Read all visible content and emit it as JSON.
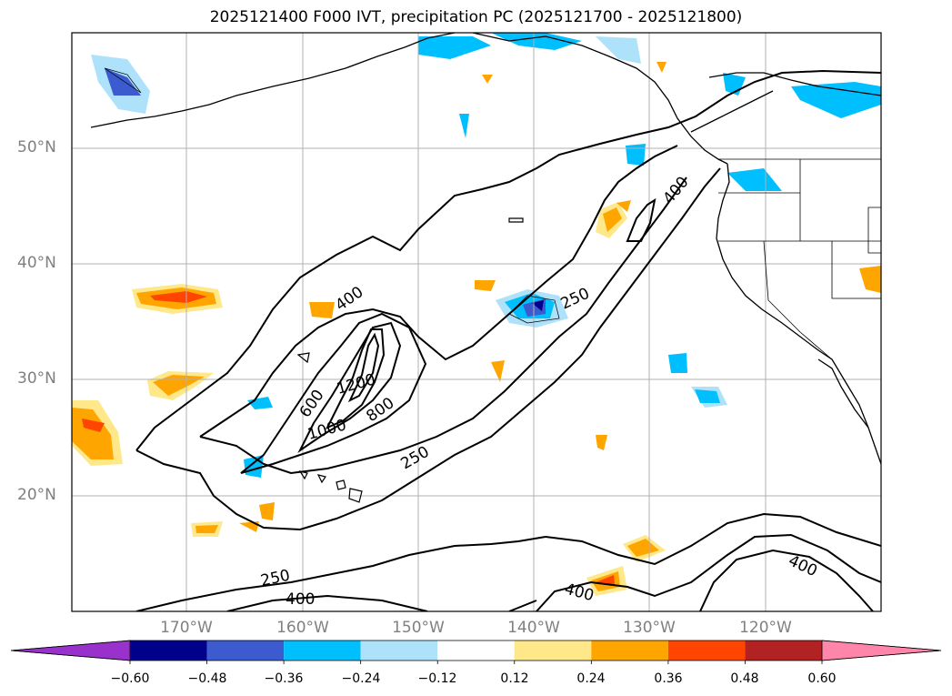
{
  "title": "2025121400 F000 IVT, precipitation PC (2025121700 - 2025121800)",
  "lat_labels": [
    "50°N",
    "40°N",
    "30°N",
    "20°N"
  ],
  "lon_labels": [
    "170°W",
    "160°W",
    "150°W",
    "140°W",
    "130°W",
    "120°W"
  ],
  "contour_labels": [
    "400",
    "250",
    "600",
    "1200",
    "800",
    "1000",
    "250",
    "400",
    "250",
    "400",
    "400",
    "400"
  ],
  "colorbar": {
    "ticks": [
      "−0.60",
      "−0.48",
      "−0.36",
      "−0.24",
      "−0.12",
      "0.12",
      "0.24",
      "0.36",
      "0.48",
      "0.60"
    ],
    "colors": [
      "#9932cc",
      "#00008b",
      "#3b5bcf",
      "#00bfff",
      "#ade2fa",
      "#ffffff",
      "#ffe88a",
      "#ffa500",
      "#ff4500",
      "#b22222",
      "#ff85aa"
    ]
  }
}
